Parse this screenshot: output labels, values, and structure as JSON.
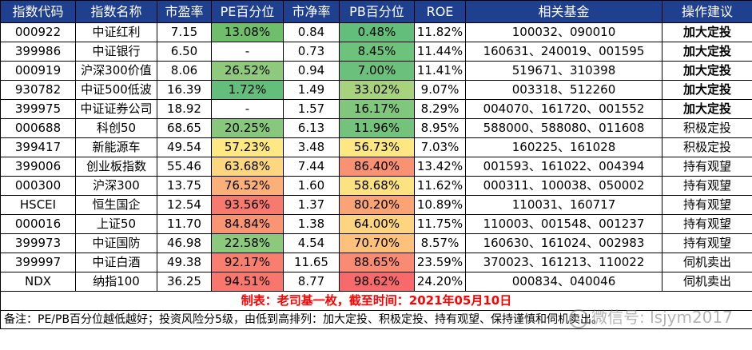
{
  "headers": [
    "指数代码",
    "指数名称",
    "市盈率",
    "PE百分位",
    "市净率",
    "PB百分位",
    "ROE",
    "相关基金",
    "操作建议"
  ],
  "colors": {
    "header_bg": "#1f3f8f",
    "footer_text": "#ff0000"
  },
  "rows": [
    {
      "code": "000922",
      "name": "中证红利",
      "pe": "7.15",
      "pe_pct": "13.08%",
      "pe_color": "#6fbf6a",
      "pb": "0.84",
      "pb_pct": "0.48%",
      "pb_color": "#63be7b",
      "roe": "11.82%",
      "funds": "100032、090010",
      "advice": "加大定投",
      "bold": true
    },
    {
      "code": "399986",
      "name": "中证银行",
      "pe": "6.50",
      "pe_pct": "-",
      "pe_color": "#ffffff",
      "pb": "0.73",
      "pb_pct": "8.45%",
      "pb_color": "#6dc27c",
      "roe": "11.44%",
      "funds": "160631、240019、001595",
      "advice": "加大定投",
      "bold": true
    },
    {
      "code": "000919",
      "name": "沪深300价值",
      "pe": "8.06",
      "pe_pct": "26.52%",
      "pe_color": "#8fca7c",
      "pb": "0.94",
      "pb_pct": "7.00%",
      "pb_color": "#6bc17c",
      "roe": "11.41%",
      "funds": "519671、310398",
      "advice": "加大定投",
      "bold": true
    },
    {
      "code": "930782",
      "name": "中证500低波",
      "pe": "16.39",
      "pe_pct": "1.72%",
      "pe_color": "#63be7b",
      "pb": "1.49",
      "pb_pct": "33.02%",
      "pb_color": "#a9d27f",
      "roe": "9.07%",
      "funds": "003318、512260",
      "advice": "加大定投",
      "bold": true
    },
    {
      "code": "399975",
      "name": "中证证券公司",
      "pe": "18.92",
      "pe_pct": "-",
      "pe_color": "#ffffff",
      "pb": "1.57",
      "pb_pct": "16.17%",
      "pb_color": "#80c77d",
      "roe": "8.29%",
      "funds": "004070、161720、001552",
      "advice": "加大定投",
      "bold": true
    },
    {
      "code": "000688",
      "name": "科创50",
      "pe": "68.65",
      "pe_pct": "20.25%",
      "pe_color": "#87c87c",
      "pb": "6.13",
      "pb_pct": "11.96%",
      "pb_color": "#74c37c",
      "roe": "8.95%",
      "funds": "588000、588080、011608",
      "advice": "积极定投",
      "bold": false
    },
    {
      "code": "399417",
      "name": "新能源车",
      "pe": "49.54",
      "pe_pct": "57.23%",
      "pe_color": "#fde883",
      "pb": "3.48",
      "pb_pct": "56.73%",
      "pb_color": "#fde783",
      "roe": "7.03%",
      "funds": "160225、161028",
      "advice": "积极定投",
      "bold": false
    },
    {
      "code": "399006",
      "name": "创业板指数",
      "pe": "55.46",
      "pe_pct": "63.68%",
      "pe_color": "#fdd680",
      "pb": "7.44",
      "pb_pct": "86.40%",
      "pb_color": "#f99273",
      "roe": "13.42%",
      "funds": "001593、161022、004394",
      "advice": "持有观望",
      "bold": false
    },
    {
      "code": "000300",
      "name": "沪深300",
      "pe": "13.75",
      "pe_pct": "76.52%",
      "pe_color": "#fbb079",
      "pb": "1.60",
      "pb_pct": "58.68%",
      "pb_color": "#fde282",
      "roe": "11.62%",
      "funds": "000311、100038、050002",
      "advice": "持有观望",
      "bold": false
    },
    {
      "code": "HSCEI",
      "name": "恒生国企",
      "pe": "12.54",
      "pe_pct": "93.56%",
      "pe_color": "#f8796e",
      "pb": "1.37",
      "pb_pct": "80.20%",
      "pb_color": "#faa476",
      "roe": "10.89%",
      "funds": "110031、160717",
      "advice": "持有观望",
      "bold": false
    },
    {
      "code": "000016",
      "name": "上证50",
      "pe": "11.70",
      "pe_pct": "84.84%",
      "pe_color": "#f99573",
      "pb": "1.38",
      "pb_pct": "64.00%",
      "pb_color": "#fdd580",
      "roe": "11.75%",
      "funds": "110003、001548、001237",
      "advice": "持有观望",
      "bold": false
    },
    {
      "code": "399973",
      "name": "中证国防",
      "pe": "46.98",
      "pe_pct": "22.58%",
      "pe_color": "#8cc97c",
      "pb": "4.54",
      "pb_pct": "70.70%",
      "pb_color": "#fcc27c",
      "roe": "8.57%",
      "funds": "160630、161024、002983",
      "advice": "持有观望",
      "bold": false
    },
    {
      "code": "399997",
      "name": "中证白酒",
      "pe": "49.38",
      "pe_pct": "92.17%",
      "pe_color": "#f87e6f",
      "pb": "11.65",
      "pb_pct": "88.65%",
      "pb_color": "#f98b72",
      "roe": "23.59%",
      "funds": "370023、161213、110022",
      "advice": "伺机卖出",
      "bold": false
    },
    {
      "code": "NDX",
      "name": "纳指100",
      "pe": "36.25",
      "pe_pct": "94.51%",
      "pe_color": "#f8766d",
      "pb": "8.77",
      "pb_pct": "98.62%",
      "pb_color": "#f8696b",
      "roe": "24.20%",
      "funds": "000834、040046",
      "advice": "伺机卖出",
      "bold": false
    }
  ],
  "footer": "制表：老司基一枚，截至时间：2021年05月10日",
  "note": "备注：PE/PB百分位越低越好；投资风险分5级，由低到高排列：加大定投、积极定投、持有观望、保持谨慎和伺机卖出。",
  "watermark": {
    "icon": "wechat-icon",
    "text": "微信号: lsjym2017"
  }
}
